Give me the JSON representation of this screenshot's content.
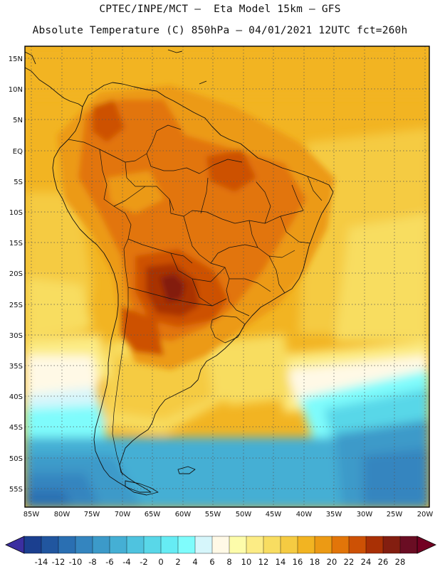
{
  "header": {
    "line1": "CPTEC/INPE/MCT –  Eta Model 15km – GFS",
    "line2": "Absolute Temperature (C) 850hPa – 04/01/2021 12UTC fct=260h"
  },
  "axes": {
    "lat_labels": [
      "15N",
      "10N",
      "5N",
      "EQ",
      "5S",
      "10S",
      "15S",
      "20S",
      "25S",
      "30S",
      "35S",
      "40S",
      "45S",
      "50S",
      "55S"
    ],
    "lon_labels": [
      "85W",
      "80W",
      "75W",
      "70W",
      "65W",
      "60W",
      "55W",
      "50W",
      "45W",
      "40W",
      "35W",
      "30W",
      "25W",
      "20W"
    ]
  },
  "colorbar": {
    "labels": [
      "-14",
      "-12",
      "-10",
      "-8",
      "-6",
      "-4",
      "-2",
      "0",
      "2",
      "4",
      "6",
      "8",
      "10",
      "12",
      "14",
      "16",
      "18",
      "20",
      "22",
      "24",
      "26",
      "28"
    ],
    "colors": [
      "#1b3f8f",
      "#21569f",
      "#2a6fb2",
      "#3485bf",
      "#3c9ac9",
      "#45afd4",
      "#4fc3df",
      "#59d7e8",
      "#66ecf4",
      "#7ffcfc",
      "#d6f6fb",
      "#fff9e6",
      "#fdfcaa",
      "#fcec85",
      "#f8dd61",
      "#f5cb42",
      "#f2b422",
      "#ec9a14",
      "#e27509",
      "#cd5105",
      "#a93005",
      "#831e10",
      "#6a0d23"
    ],
    "min_left": "#3b2fa0",
    "max_right": "#730022"
  },
  "map_colors": {
    "ocean_warm": "#f2b422",
    "ocean_mid": "#f5cb42",
    "cool_pale": "#fff9e6",
    "land_hot": "#e27509",
    "land_hottest": "#cd5105",
    "frame": "#000000"
  }
}
